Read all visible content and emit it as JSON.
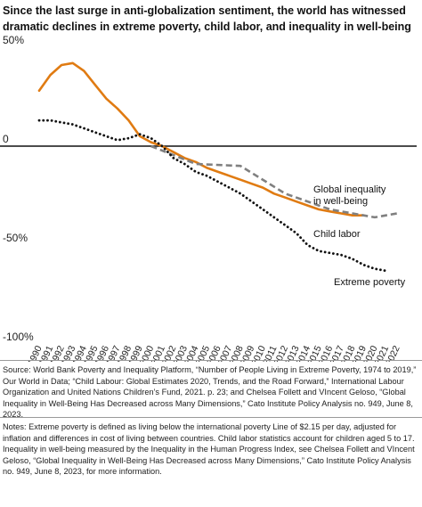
{
  "chart_data": {
    "type": "line",
    "title": "Since the last surge in anti-globalization sentiment, the world has witnessed dramatic declines in extreme poverty, child labor, and inequality in well-being",
    "x": [
      1990,
      1991,
      1992,
      1993,
      1994,
      1995,
      1996,
      1997,
      1998,
      1999,
      2000,
      2001,
      2002,
      2003,
      2004,
      2005,
      2006,
      2007,
      2008,
      2009,
      2010,
      2011,
      2012,
      2013,
      2014,
      2015,
      2016,
      2017,
      2018,
      2019,
      2020,
      2021,
      2022
    ],
    "x_tick_labels": [
      "1990",
      "1991",
      "1992",
      "1993",
      "1994",
      "1995",
      "1996",
      "1997",
      "1998",
      "1999",
      "2000",
      "2001",
      "2002",
      "2003",
      "2004",
      "2005",
      "2006",
      "2007",
      "2008",
      "2009",
      "2010",
      "2011",
      "2012",
      "2013",
      "2014",
      "2015",
      "2016",
      "2017",
      "2018",
      "2019",
      "2020",
      "2021",
      "2022"
    ],
    "y_tick_labels": [
      "50%",
      "0",
      "-50%",
      "-100%"
    ],
    "y_ticks": [
      50,
      0,
      -50,
      -100
    ],
    "ylim": [
      -100,
      50
    ],
    "xlim": [
      1990,
      2022
    ],
    "grid": false,
    "series": [
      {
        "name": "Global inequality in well-being",
        "label_lines": [
          "Global inequality",
          "in well-being"
        ],
        "color": "#e07b12",
        "style": "solid",
        "points": [
          [
            1990,
            28
          ],
          [
            1991,
            36
          ],
          [
            1992,
            41
          ],
          [
            1993,
            42
          ],
          [
            1994,
            38
          ],
          [
            1995,
            31
          ],
          [
            1996,
            24
          ],
          [
            1997,
            19
          ],
          [
            1998,
            13
          ],
          [
            1999,
            5
          ],
          [
            2000,
            2
          ],
          [
            2001,
            0
          ],
          [
            2002,
            -3
          ],
          [
            2003,
            -6
          ],
          [
            2004,
            -8
          ],
          [
            2005,
            -11
          ],
          [
            2006,
            -13
          ],
          [
            2007,
            -15
          ],
          [
            2008,
            -17
          ],
          [
            2009,
            -19
          ],
          [
            2010,
            -21
          ],
          [
            2011,
            -24
          ],
          [
            2012,
            -26
          ],
          [
            2013,
            -28
          ],
          [
            2014,
            -30
          ],
          [
            2015,
            -32
          ],
          [
            2016,
            -33
          ],
          [
            2017,
            -34
          ],
          [
            2018,
            -35
          ],
          [
            2019,
            -35
          ]
        ]
      },
      {
        "name": "Child labor",
        "label_lines": [
          "Child labor"
        ],
        "color": "#808080",
        "style": "dashed",
        "points": [
          [
            2000,
            0
          ],
          [
            2004,
            -9
          ],
          [
            2008,
            -10
          ],
          [
            2012,
            -24
          ],
          [
            2016,
            -32
          ],
          [
            2020,
            -36
          ],
          [
            2022,
            -34
          ]
        ]
      },
      {
        "name": "Extreme poverty",
        "label_lines": [
          "Extreme poverty"
        ],
        "color": "#111111",
        "style": "dotted",
        "points": [
          [
            1990,
            13
          ],
          [
            1991,
            13
          ],
          [
            1992,
            12
          ],
          [
            1993,
            11
          ],
          [
            1994,
            9
          ],
          [
            1995,
            7
          ],
          [
            1996,
            5
          ],
          [
            1997,
            3
          ],
          [
            1998,
            4
          ],
          [
            1999,
            6
          ],
          [
            2000,
            4
          ],
          [
            2001,
            0
          ],
          [
            2002,
            -6
          ],
          [
            2003,
            -9
          ],
          [
            2004,
            -13
          ],
          [
            2005,
            -15
          ],
          [
            2006,
            -18
          ],
          [
            2007,
            -21
          ],
          [
            2008,
            -24
          ],
          [
            2009,
            -28
          ],
          [
            2010,
            -32
          ],
          [
            2011,
            -36
          ],
          [
            2012,
            -40
          ],
          [
            2013,
            -44
          ],
          [
            2014,
            -50
          ],
          [
            2015,
            -53
          ],
          [
            2016,
            -54
          ],
          [
            2017,
            -55
          ],
          [
            2018,
            -57
          ],
          [
            2019,
            -60
          ],
          [
            2020,
            -62
          ],
          [
            2021,
            -63
          ]
        ]
      }
    ]
  },
  "source_text": "Source: World Bank Poverty and Inequality Platform, “Number of People Living in Extreme Poverty, 1974 to 2019,” Our World in Data; “Child Labour: Global Estimates 2020, Trends, and the Road Forward,” International Labour Organization and United Nations Children’s Fund, 2021. p. 23; and Chelsea Follett and VIncent Geloso, “Global Inequality in Well-Being Has Decreased across Many Dimensions,” Cato Institute Policy Analysis no. 949, June 8, 2023.",
  "notes_text": "Notes: Extreme poverty is defined as living below the international poverty Line of $2.15 per day, adjusted for inflation and differences in cost of living between countries. Child labor statistics account for children aged 5 to 17. Inequality in well-being measured by the Inequality in the Human Progress Index, see Chelsea Follett and VIncent Geloso, “Global Inequality in Well-Being Has Decreased across Many Dimensions,” Cato Institute Policy Analysis no. 949, June 8, 2023, for more information."
}
